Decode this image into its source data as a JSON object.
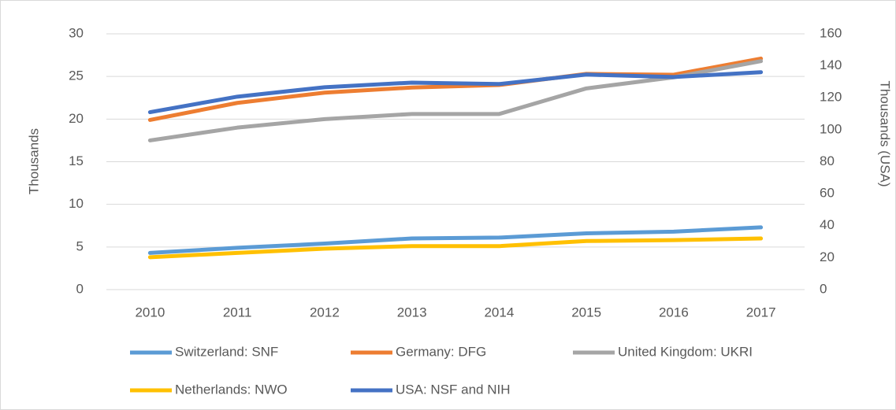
{
  "chart_data": {
    "type": "line",
    "categories": [
      "2010",
      "2011",
      "2012",
      "2013",
      "2014",
      "2015",
      "2016",
      "2017"
    ],
    "y_label": "Thousands",
    "y2_label": "Thousands (USA)",
    "ylim": [
      0,
      30
    ],
    "yticks": [
      0,
      5,
      10,
      15,
      20,
      25,
      30
    ],
    "y2lim": [
      0,
      160
    ],
    "y2ticks": [
      0,
      20,
      40,
      60,
      80,
      100,
      120,
      140,
      160
    ],
    "grid": true,
    "legend": "bottom",
    "series": [
      {
        "name": "Switzerland: SNF",
        "color": "#5b9bd5",
        "values": [
          4.3,
          4.9,
          5.4,
          6.0,
          6.1,
          6.6,
          6.8,
          7.3
        ]
      },
      {
        "name": "Germany: DFG",
        "color": "#ed7d31",
        "values": [
          19.9,
          21.9,
          23.1,
          23.7,
          24.0,
          25.3,
          25.2,
          27.1
        ]
      },
      {
        "name": "United Kingdom: UKRI",
        "color": "#a5a5a5",
        "values": [
          17.5,
          19.0,
          20.0,
          20.6,
          20.6,
          23.6,
          24.9,
          26.8
        ]
      },
      {
        "name": "Netherlands: NWO",
        "color": "#ffc000",
        "values": [
          3.8,
          4.3,
          4.8,
          5.1,
          5.1,
          5.7,
          5.8,
          6.0
        ]
      },
      {
        "name": "USA: NSF and NIH",
        "color": "#4472c4",
        "axis": "y2",
        "values": [
          111,
          120.7,
          126.6,
          129.5,
          128.6,
          134.5,
          133,
          136
        ]
      }
    ]
  }
}
